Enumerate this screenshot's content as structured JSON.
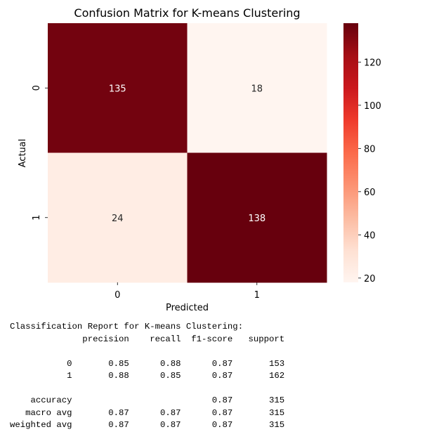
{
  "chart_data": {
    "type": "heatmap",
    "title": "Confusion Matrix for K-means Clustering",
    "xlabel": "Predicted",
    "ylabel": "Actual",
    "x_categories": [
      "0",
      "1"
    ],
    "y_categories": [
      "0",
      "1"
    ],
    "values": [
      [
        135,
        18
      ],
      [
        24,
        138
      ]
    ],
    "annot": true,
    "colormap": "Reds",
    "color_range": [
      18,
      138
    ],
    "colorbar_ticks": [
      20,
      40,
      60,
      80,
      100,
      120
    ],
    "colorbar_tick_labels": [
      "20",
      "40",
      "60",
      "80",
      "100",
      "120"
    ]
  },
  "report": {
    "lines": [
      "Classification Report for K-means Clustering:",
      "              precision    recall  f1-score   support",
      "",
      "           0       0.85      0.88      0.87       153",
      "           1       0.88      0.85      0.87       162",
      "",
      "    accuracy                           0.87       315",
      "   macro avg       0.87      0.87      0.87       315",
      "weighted avg       0.87      0.87      0.87       315"
    ]
  }
}
